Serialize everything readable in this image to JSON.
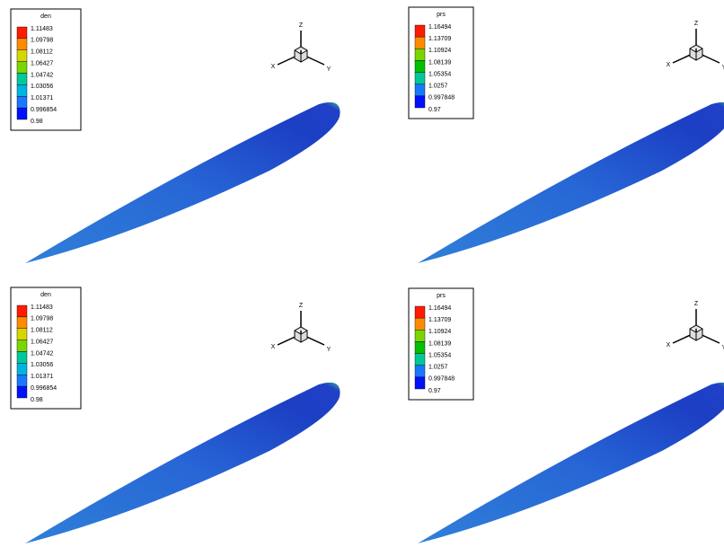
{
  "panels": [
    {
      "legend": {
        "title": "den",
        "labels": [
          "1.11483",
          "1.09798",
          "1.08112",
          "1.06427",
          "1.04742",
          "1.03056",
          "1.01371",
          "0.996854",
          "0.98"
        ]
      },
      "axes": {
        "x": "X",
        "y": "Y",
        "z": "Z"
      }
    },
    {
      "legend": {
        "title": "prs",
        "labels": [
          "1.16494",
          "1.13709",
          "1.10924",
          "1.08139",
          "1.05354",
          "1.0257",
          "0.997848",
          "0.97"
        ]
      },
      "axes": {
        "x": "X",
        "y": "Y",
        "z": "Z"
      }
    },
    {
      "legend": {
        "title": "den",
        "labels": [
          "1.11483",
          "1.09798",
          "1.08112",
          "1.06427",
          "1.04742",
          "1.03056",
          "1.01371",
          "0.996854",
          "0.98"
        ]
      },
      "axes": {
        "x": "X",
        "y": "Y",
        "z": "Z"
      }
    },
    {
      "legend": {
        "title": "prs",
        "labels": [
          "1.16494",
          "1.13709",
          "1.10924",
          "1.08139",
          "1.05354",
          "1.0257",
          "0.997848",
          "0.97"
        ]
      },
      "axes": {
        "x": "X",
        "y": "Y",
        "z": "Z"
      }
    }
  ]
}
